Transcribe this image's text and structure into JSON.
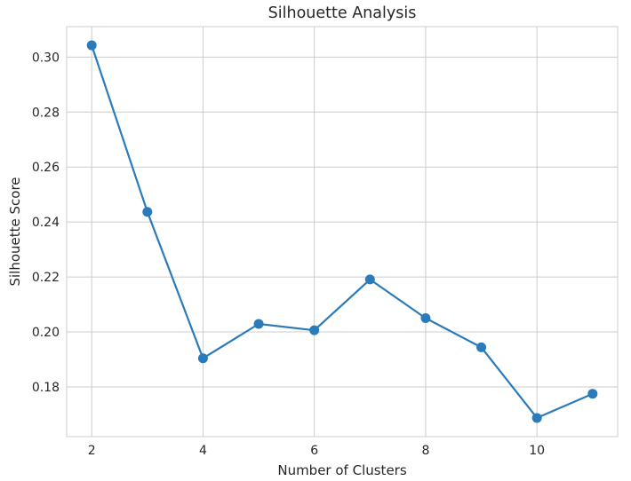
{
  "chart_data": {
    "type": "line",
    "title": "Silhouette Analysis",
    "xlabel": "Number of Clusters",
    "ylabel": "Silhouette Score",
    "x": [
      2,
      3,
      4,
      5,
      6,
      7,
      8,
      9,
      10,
      11
    ],
    "series": [
      {
        "values": [
          0.3043,
          0.2437,
          0.1904,
          0.2029,
          0.2006,
          0.2191,
          0.205,
          0.1944,
          0.1687,
          0.1775
        ]
      }
    ],
    "xticks": [
      2,
      4,
      6,
      8,
      10
    ],
    "xtick_labels": [
      "2",
      "4",
      "6",
      "8",
      "10"
    ],
    "yticks": [
      0.18,
      0.2,
      0.22,
      0.24,
      0.26,
      0.28,
      0.3
    ],
    "ytick_labels": [
      "0.18",
      "0.20",
      "0.22",
      "0.24",
      "0.26",
      "0.28",
      "0.30"
    ],
    "xlim": [
      1.55,
      11.45
    ],
    "ylim": [
      0.1619,
      0.3111
    ],
    "grid": true,
    "line_color": "#2b7bba",
    "grid_color": "#cccccc",
    "marker": "circle"
  }
}
